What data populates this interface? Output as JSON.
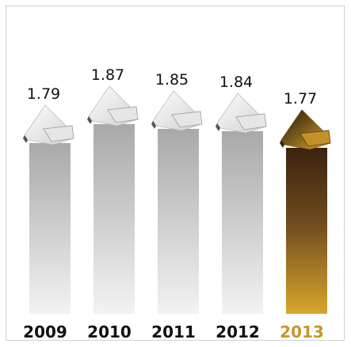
{
  "chart_data": {
    "type": "bar",
    "title": "",
    "xlabel": "",
    "ylabel": "",
    "categories": [
      "2009",
      "2010",
      "2011",
      "2012",
      "2013"
    ],
    "values": [
      1.79,
      1.87,
      1.85,
      1.84,
      1.77
    ],
    "value_labels": [
      "1.79",
      "1.87",
      "1.85",
      "1.84",
      "1.77"
    ],
    "highlighted_category": "2013",
    "ylim": [
      1.7,
      1.9
    ],
    "grid": false,
    "legend": "none",
    "colors": {
      "bar_gray_top": "#a8a8a8",
      "bar_gray_bottom": "#f2f2f2",
      "bar_highlight_top": "#3b2410",
      "bar_highlight_bottom": "#d6a42c",
      "highlight_text": "#c8952a"
    }
  }
}
